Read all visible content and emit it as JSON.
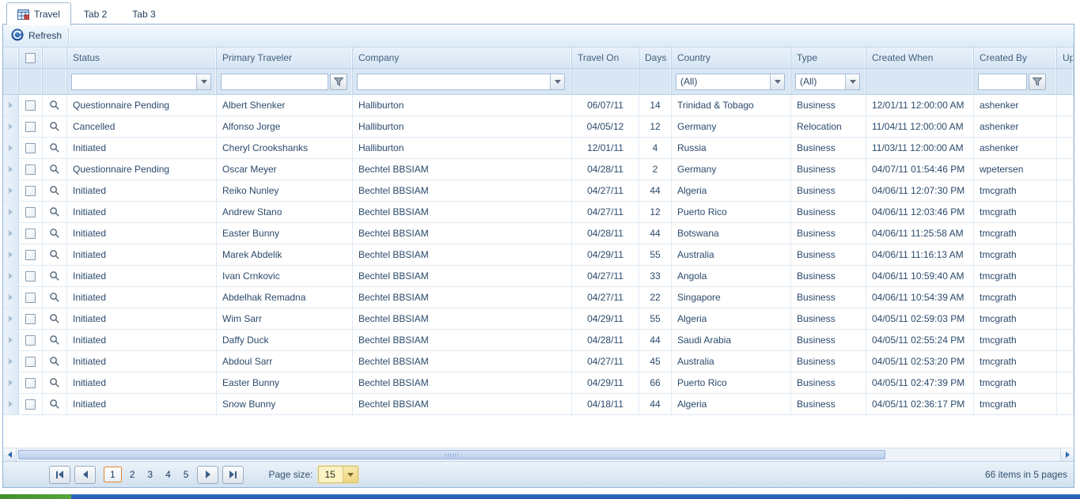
{
  "tabs": [
    {
      "label": "Travel",
      "active": true
    },
    {
      "label": "Tab 2",
      "active": false
    },
    {
      "label": "Tab 3",
      "active": false
    }
  ],
  "toolbar": {
    "refresh_label": "Refresh"
  },
  "grid": {
    "columns": [
      {
        "label": "Status"
      },
      {
        "label": "Primary Traveler"
      },
      {
        "label": "Company"
      },
      {
        "label": "Travel On"
      },
      {
        "label": "Days"
      },
      {
        "label": "Country"
      },
      {
        "label": "Type"
      },
      {
        "label": "Created When"
      },
      {
        "label": "Created By"
      },
      {
        "label": "Up"
      }
    ],
    "filters": {
      "status": "",
      "traveler": "",
      "company": "",
      "country": "(All)",
      "type": "(All)",
      "created_by": ""
    },
    "rows": [
      {
        "status": "Questionnaire Pending",
        "traveler": "Albert Shenker",
        "company": "Halliburton",
        "travel_on": "06/07/11",
        "days": "14",
        "country": "Trinidad & Tobago",
        "type": "Business",
        "created_when": "12/01/11 12:00:00 AM",
        "created_by": "ashenker"
      },
      {
        "status": "Cancelled",
        "traveler": "Alfonso Jorge",
        "company": "Halliburton",
        "travel_on": "04/05/12",
        "days": "12",
        "country": "Germany",
        "type": "Relocation",
        "created_when": "11/04/11 12:00:00 AM",
        "created_by": "ashenker"
      },
      {
        "status": "Initiated",
        "traveler": "Cheryl Crookshanks",
        "company": "Halliburton",
        "travel_on": "12/01/11",
        "days": "4",
        "country": "Russia",
        "type": "Business",
        "created_when": "11/03/11 12:00:00 AM",
        "created_by": "ashenker"
      },
      {
        "status": "Questionnaire Pending",
        "traveler": "Oscar Meyer",
        "company": "Bechtel BBSIAM",
        "travel_on": "04/28/11",
        "days": "2",
        "country": "Germany",
        "type": "Business",
        "created_when": "04/07/11 01:54:46 PM",
        "created_by": "wpetersen"
      },
      {
        "status": "Initiated",
        "traveler": "Reiko Nunley",
        "company": "Bechtel BBSIAM",
        "travel_on": "04/27/11",
        "days": "44",
        "country": "Algeria",
        "type": "Business",
        "created_when": "04/06/11 12:07:30 PM",
        "created_by": "tmcgrath"
      },
      {
        "status": "Initiated",
        "traveler": "Andrew Stano",
        "company": "Bechtel BBSIAM",
        "travel_on": "04/27/11",
        "days": "12",
        "country": "Puerto Rico",
        "type": "Business",
        "created_when": "04/06/11 12:03:46 PM",
        "created_by": "tmcgrath"
      },
      {
        "status": "Initiated",
        "traveler": "Easter Bunny",
        "company": "Bechtel BBSIAM",
        "travel_on": "04/28/11",
        "days": "44",
        "country": "Botswana",
        "type": "Business",
        "created_when": "04/06/11 11:25:58 AM",
        "created_by": "tmcgrath"
      },
      {
        "status": "Initiated",
        "traveler": "Marek Abdelik",
        "company": "Bechtel BBSIAM",
        "travel_on": "04/29/11",
        "days": "55",
        "country": "Australia",
        "type": "Business",
        "created_when": "04/06/11 11:16:13 AM",
        "created_by": "tmcgrath"
      },
      {
        "status": "Initiated",
        "traveler": "Ivan Crnkovic",
        "company": "Bechtel BBSIAM",
        "travel_on": "04/27/11",
        "days": "33",
        "country": "Angola",
        "type": "Business",
        "created_when": "04/06/11 10:59:40 AM",
        "created_by": "tmcgrath"
      },
      {
        "status": "Initiated",
        "traveler": "Abdelhak Remadna",
        "company": "Bechtel BBSIAM",
        "travel_on": "04/27/11",
        "days": "22",
        "country": "Singapore",
        "type": "Business",
        "created_when": "04/06/11 10:54:39 AM",
        "created_by": "tmcgrath"
      },
      {
        "status": "Initiated",
        "traveler": "Wim Sarr",
        "company": "Bechtel BBSIAM",
        "travel_on": "04/29/11",
        "days": "55",
        "country": "Algeria",
        "type": "Business",
        "created_when": "04/05/11 02:59:03 PM",
        "created_by": "tmcgrath"
      },
      {
        "status": "Initiated",
        "traveler": "Daffy Duck",
        "company": "Bechtel BBSIAM",
        "travel_on": "04/28/11",
        "days": "44",
        "country": "Saudi Arabia",
        "type": "Business",
        "created_when": "04/05/11 02:55:24 PM",
        "created_by": "tmcgrath"
      },
      {
        "status": "Initiated",
        "traveler": "Abdoul Sarr",
        "company": "Bechtel BBSIAM",
        "travel_on": "04/27/11",
        "days": "45",
        "country": "Australia",
        "type": "Business",
        "created_when": "04/05/11 02:53:20 PM",
        "created_by": "tmcgrath"
      },
      {
        "status": "Initiated",
        "traveler": "Easter Bunny",
        "company": "Bechtel BBSIAM",
        "travel_on": "04/29/11",
        "days": "66",
        "country": "Puerto Rico",
        "type": "Business",
        "created_when": "04/05/11 02:47:39 PM",
        "created_by": "tmcgrath"
      },
      {
        "status": "Initiated",
        "traveler": "Snow Bunny",
        "company": "Bechtel BBSIAM",
        "travel_on": "04/18/11",
        "days": "44",
        "country": "Algeria",
        "type": "Business",
        "created_when": "04/05/11 02:36:17 PM",
        "created_by": "tmcgrath"
      }
    ]
  },
  "pager": {
    "pages": [
      "1",
      "2",
      "3",
      "4",
      "5"
    ],
    "current_page": "1",
    "page_size_label": "Page size:",
    "page_size": "15",
    "summary": "66 items in 5 pages"
  },
  "colors": {
    "header_text": "#44607c",
    "cell_text": "#2b4a6b",
    "panel_border": "#91b3d4",
    "current_page_border": "#e0862c",
    "page_size_bg": "#fcf3c5",
    "strip_green": "#4a9630",
    "strip_blue": "#2a5db8"
  }
}
